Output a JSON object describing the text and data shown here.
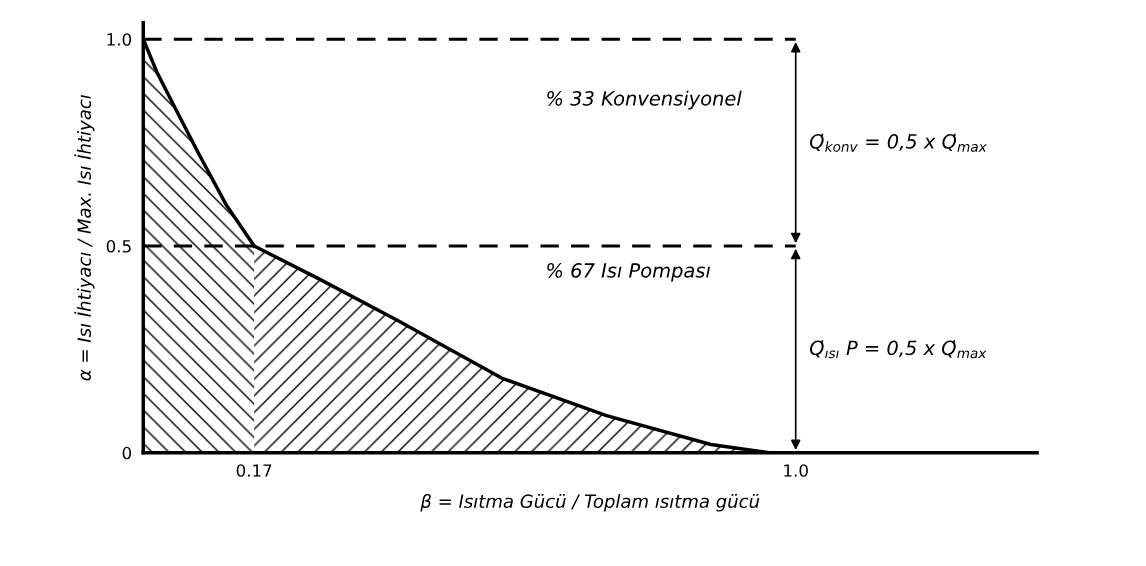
{
  "chart_data": {
    "type": "area",
    "xlabel": "β = Isıtma Gücü / Toplam ısıtma gücü",
    "ylabel": "α = Isı İhtiyacı / Max. Isı İhtiyacı",
    "series": [
      {
        "color": "#000000",
        "x": [
          0,
          0.021,
          0.05,
          0.086,
          0.127,
          0.17
        ],
        "values": [
          1.0,
          0.92,
          0.83,
          0.72,
          0.6,
          0.5
        ]
      },
      {
        "color": "#000000",
        "x": [
          0.17,
          0.27,
          0.39,
          0.55,
          0.71,
          0.87,
          0.96
        ],
        "values": [
          0.5,
          0.42,
          0.32,
          0.18,
          0.09,
          0.02,
          0
        ]
      }
    ],
    "xlim": [
      0,
      1.37
    ],
    "ylim": [
      0,
      1.04
    ],
    "xticks": [
      0.17,
      {
        "value": 1.0,
        "label": "1.0"
      }
    ],
    "yticks": [
      0,
      0.5,
      {
        "value": 1.0,
        "label": "1.0"
      }
    ],
    "ref_lines": [
      {
        "axis": "y",
        "value": 1.0,
        "line_style": "dashed",
        "color": "#000000"
      },
      {
        "axis": "y",
        "value": 0.5,
        "line_style": "dashed",
        "color": "#000000"
      }
    ],
    "annotations": [
      "% 33 Konvensiyonel",
      "% 67 Isı Pompası",
      "Q̇$_{konv}$ = 0,5 x Q̇$_{max}$",
      "Q̇$_{ısı}$ P = 0,5 x Q̇$_{max}$"
    ],
    "grid": false,
    "legend": false,
    "marker": "none",
    "line_style": "solid"
  }
}
